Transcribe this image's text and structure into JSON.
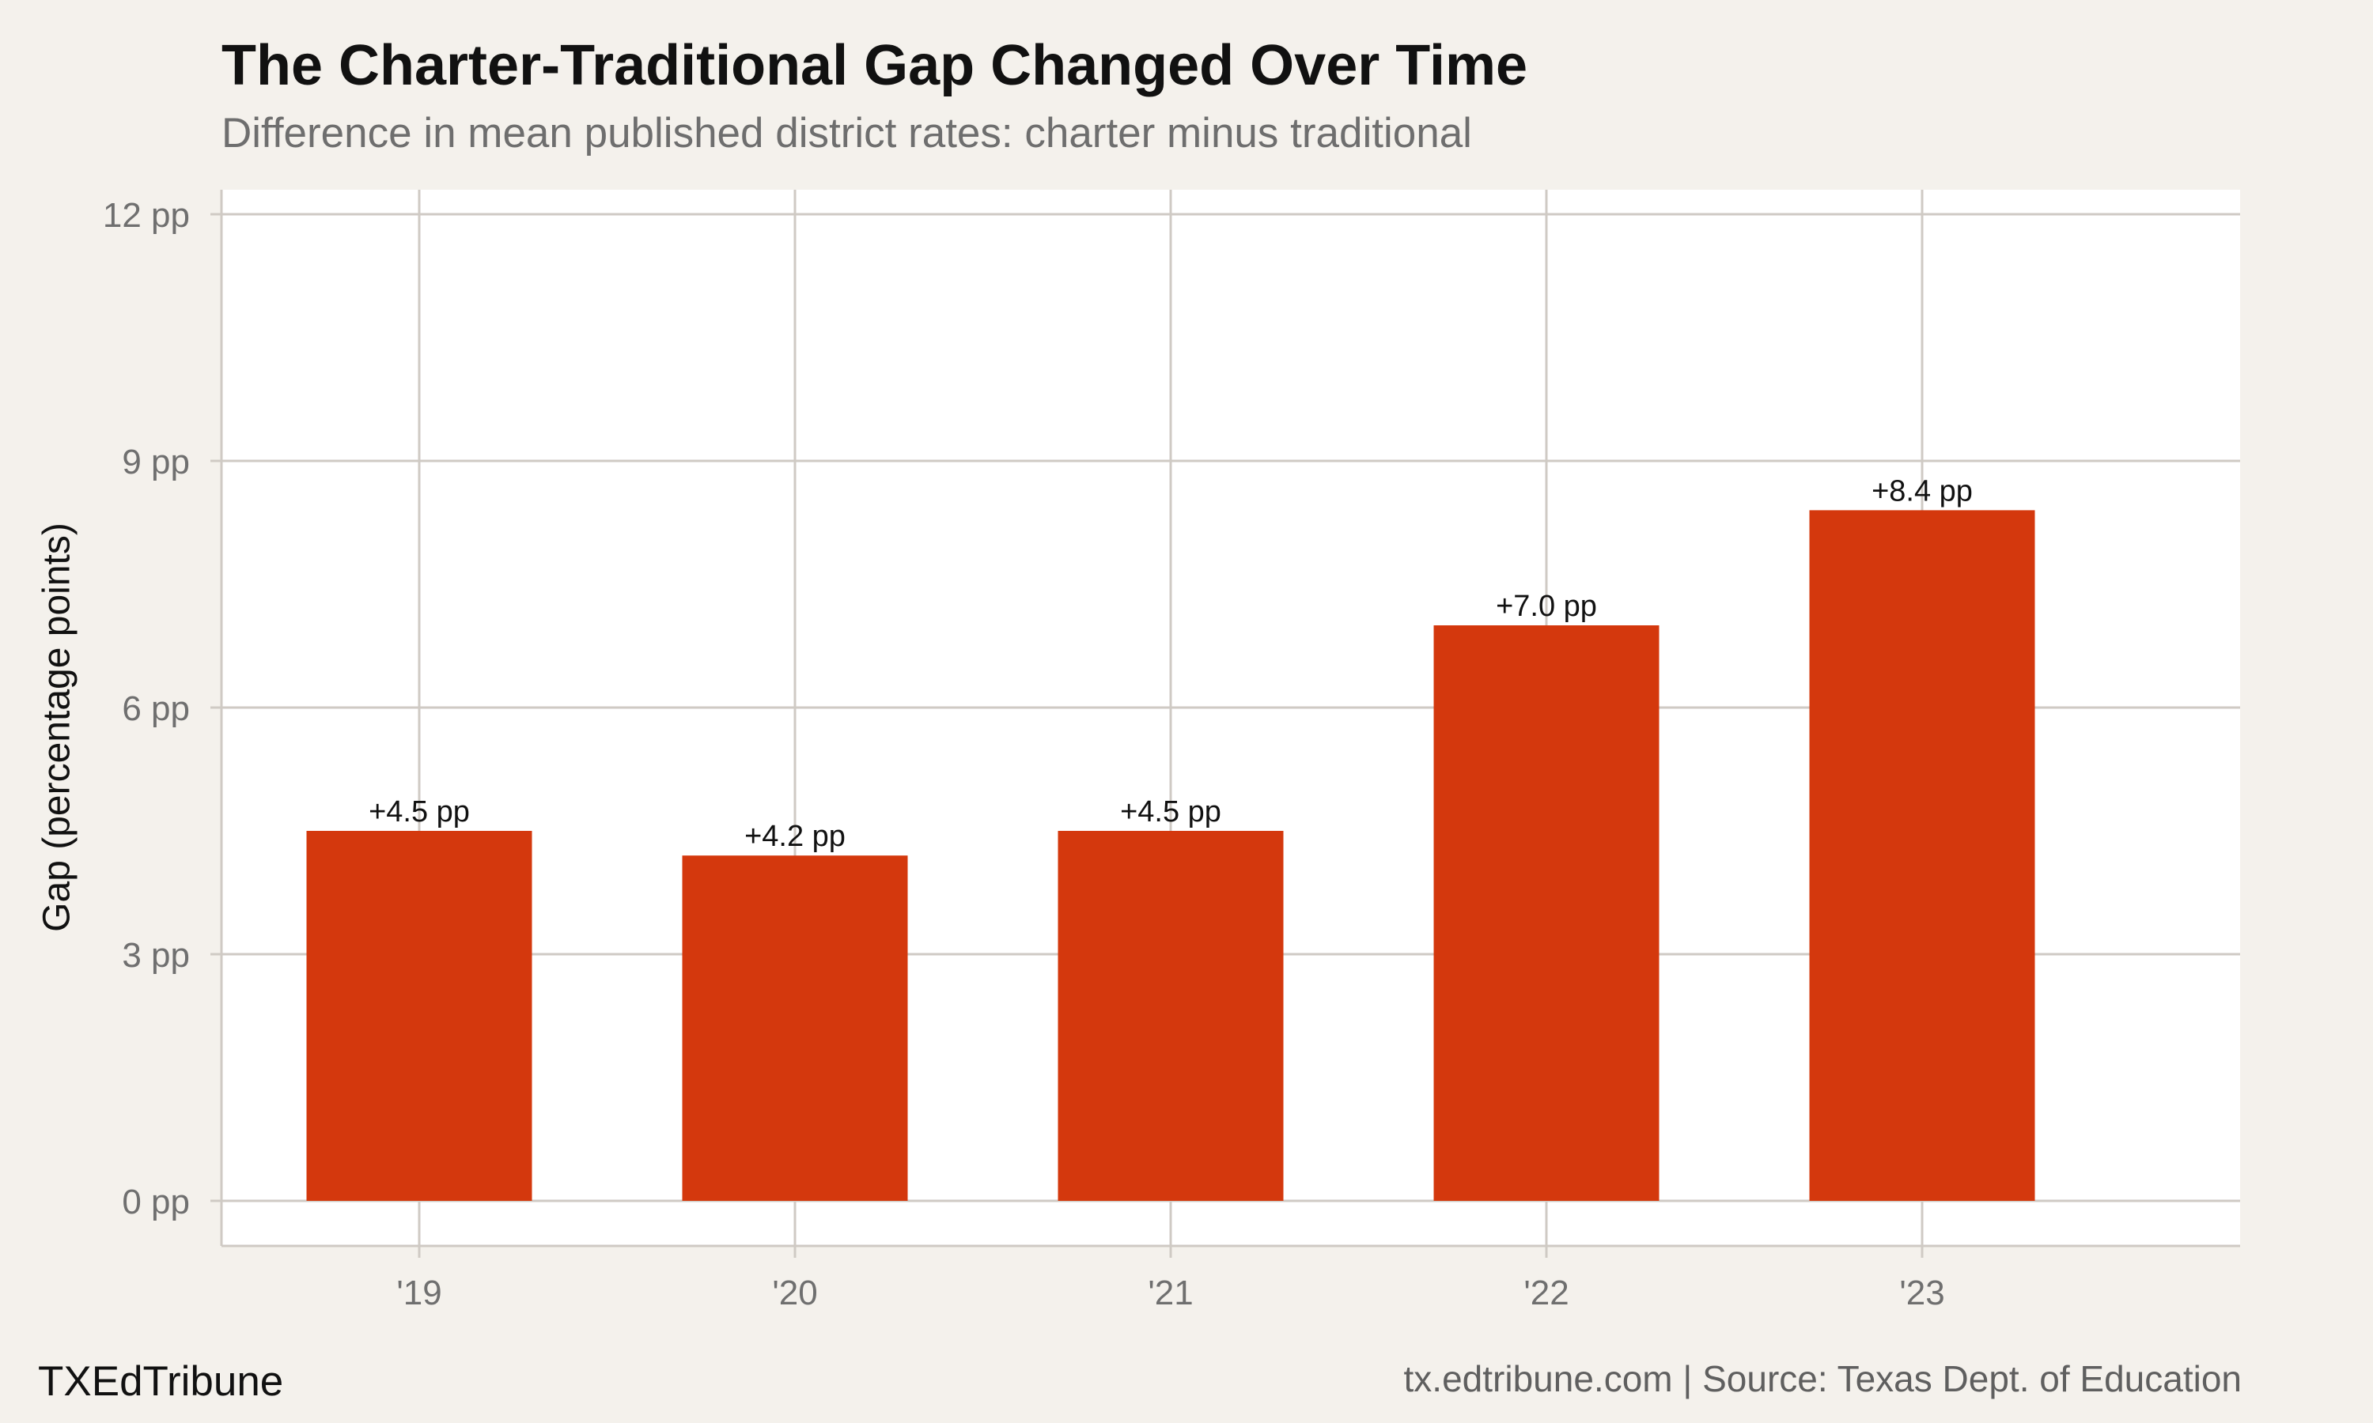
{
  "chart_data": {
    "type": "bar",
    "title": "The Charter-Traditional Gap Changed Over Time",
    "subtitle": "Difference in mean published district rates: charter minus traditional",
    "xlabel": "",
    "ylabel": "Gap (percentage points)",
    "categories": [
      "'19",
      "'20",
      "'21",
      "'22",
      "'23"
    ],
    "values": [
      4.5,
      4.2,
      4.5,
      7.0,
      8.4
    ],
    "data_labels": [
      "+4.5 pp",
      "+4.2 pp",
      "+4.5 pp",
      "+7.0 pp",
      "+8.4 pp"
    ],
    "ylim": [
      0,
      12
    ],
    "y_ticks": [
      0,
      3,
      6,
      9,
      12
    ],
    "y_tick_labels": [
      "0 pp",
      "3 pp",
      "6 pp",
      "9 pp",
      "12 pp"
    ],
    "grid": true,
    "legend": "none",
    "bar_color": "#d4380d",
    "footer_left": "TXEdTribune",
    "footer_right": "tx.edtribune.com | Source: Texas Dept. of Education"
  },
  "colors": {
    "background": "#f4f1ec",
    "panel": "#ffffff",
    "grid": "#cfcac4",
    "axis_text": "#6f6f6f"
  }
}
